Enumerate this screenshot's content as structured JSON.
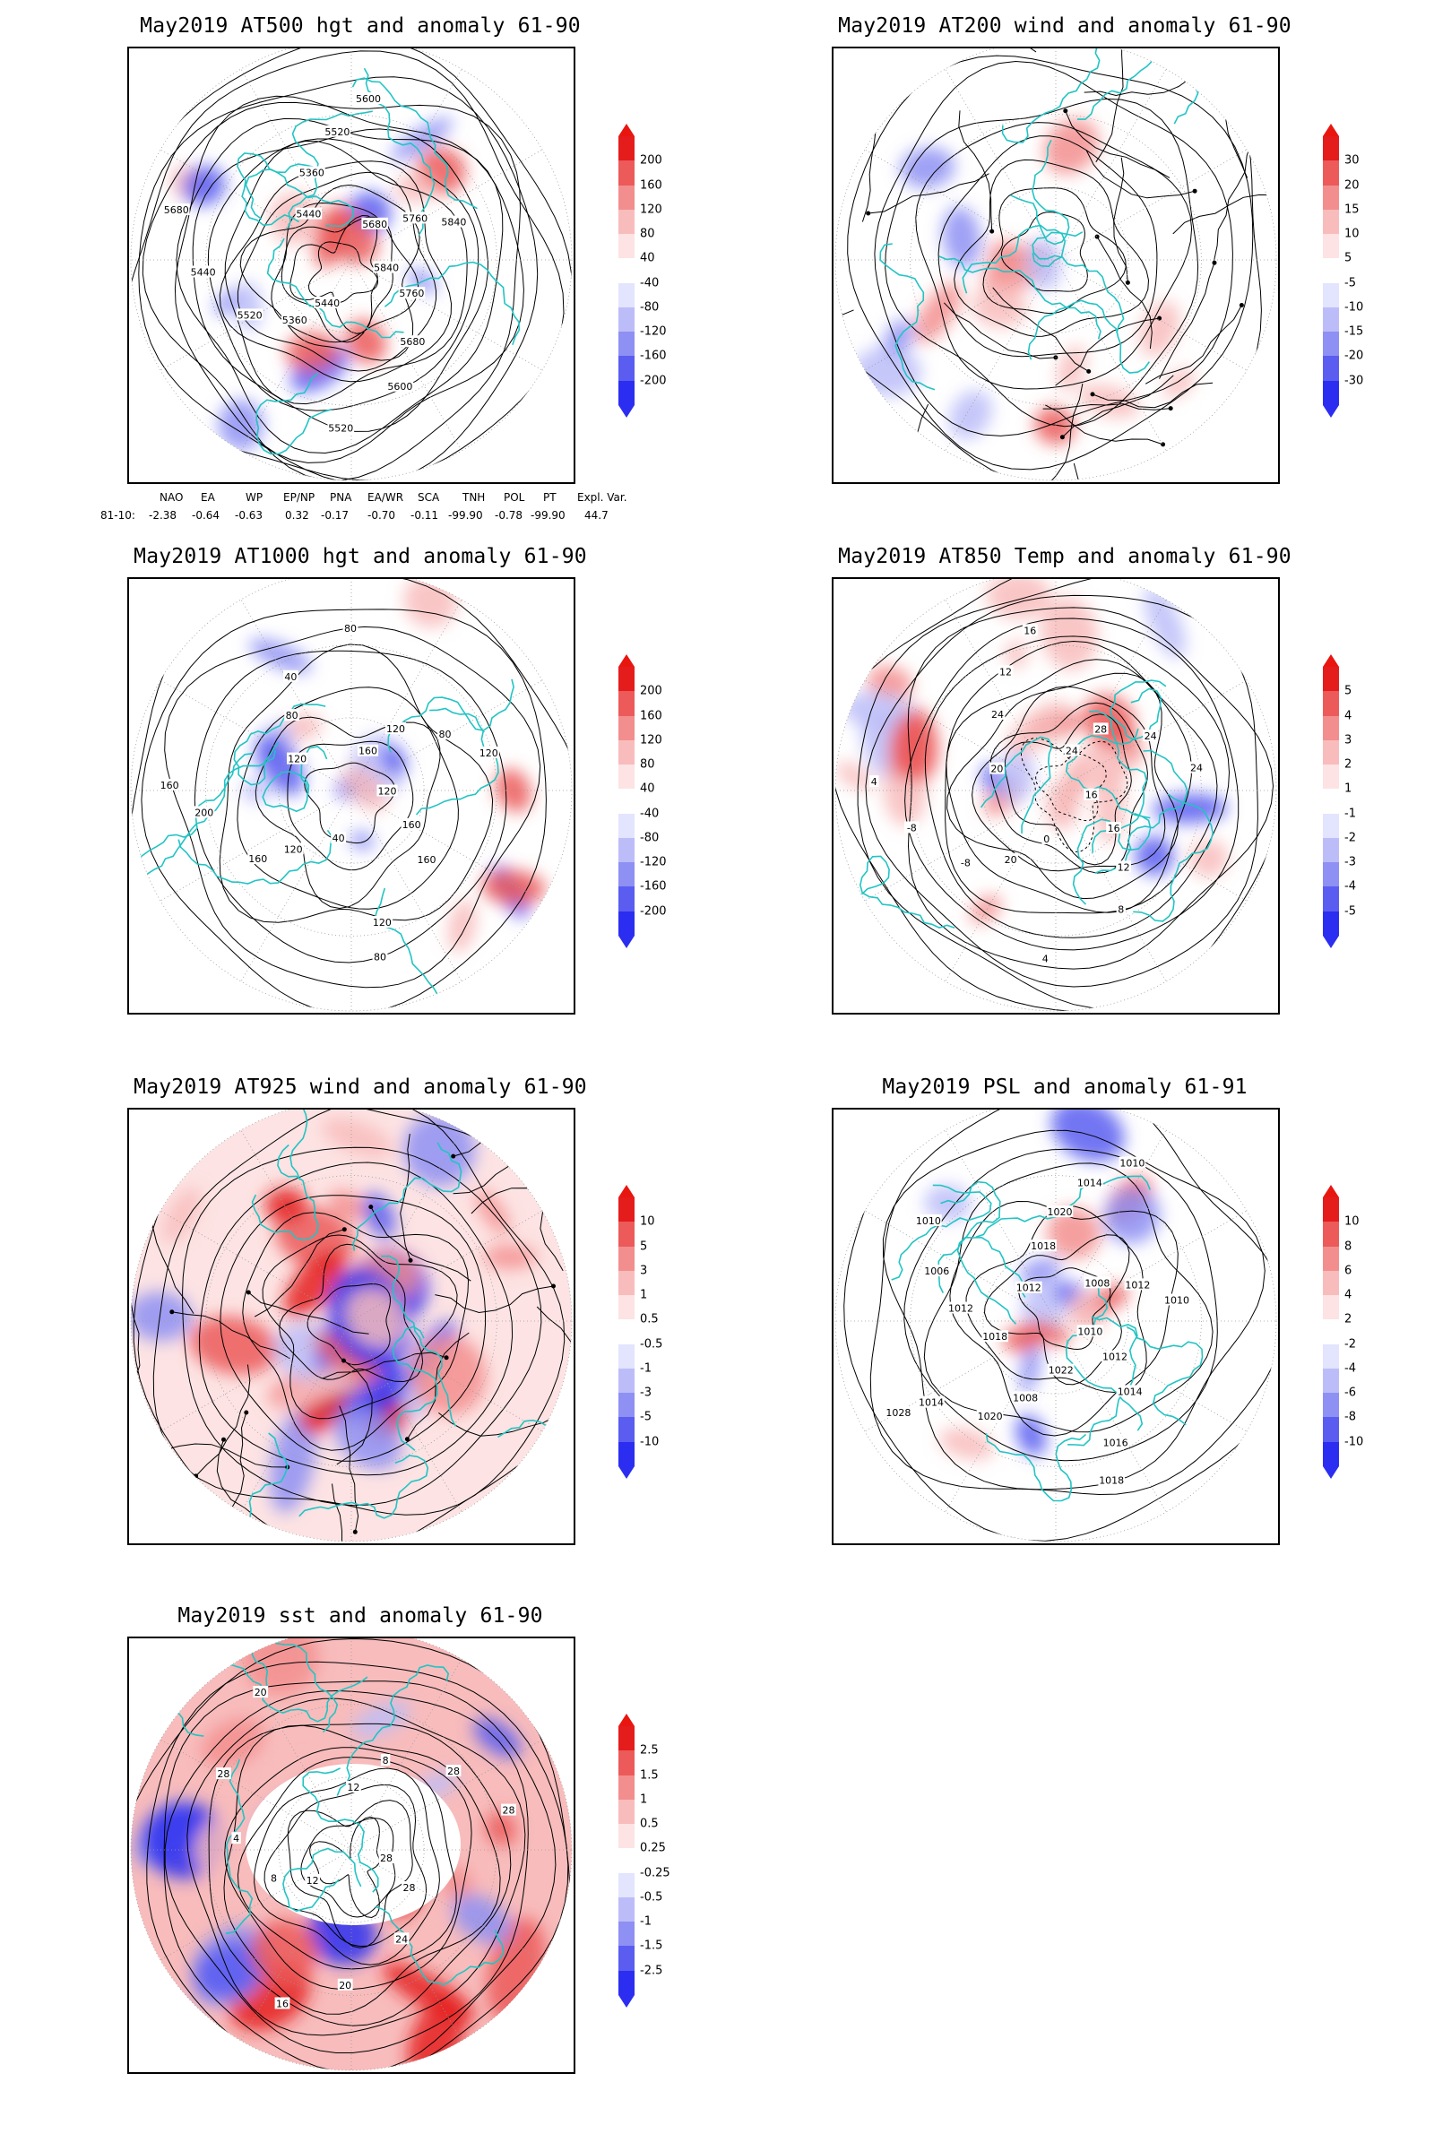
{
  "colors": {
    "coast": "#22c4c4",
    "pos": [
      "#fde3e3",
      "#f8bcbc",
      "#f38e8e",
      "#ec5a5a",
      "#e51c1c"
    ],
    "neg": [
      "#e3e4fd",
      "#bcbdf8",
      "#8e90f3",
      "#5a5df0",
      "#2b2ef0"
    ],
    "contour": "#000000"
  },
  "panels": [
    {
      "title": "May2019 AT500 hgt and anomaly 61-90",
      "colorbar_ticks": [
        "200",
        "160",
        "120",
        "80",
        "40",
        "-40",
        "-80",
        "-120",
        "-160",
        "-200"
      ],
      "contour_labels": [
        "5840",
        "5760",
        "5680",
        "5600",
        "5520",
        "5440",
        "5360",
        "5520",
        "5440",
        "5680",
        "5440",
        "5360",
        "5520",
        "5600",
        "5680",
        "5760",
        "5840"
      ]
    },
    {
      "title": "May2019 AT200 wind and anomaly 61-90",
      "colorbar_ticks": [
        "30",
        "20",
        "15",
        "10",
        "5",
        "-5",
        "-10",
        "-15",
        "-20",
        "-30"
      ],
      "contour_labels": []
    },
    {
      "title": "May2019 AT1000 hgt and anomaly 61-90",
      "colorbar_ticks": [
        "200",
        "160",
        "120",
        "80",
        "40",
        "-40",
        "-80",
        "-120",
        "-160",
        "-200"
      ],
      "contour_labels": [
        "120",
        "160",
        "160",
        "120",
        "80",
        "40",
        "120",
        "160",
        "200",
        "160",
        "120",
        "80",
        "40",
        "80",
        "160",
        "120",
        "80",
        "120"
      ]
    },
    {
      "title": "May2019 AT850 Temp and anomaly 61-90",
      "colorbar_ticks": [
        "5",
        "4",
        "3",
        "2",
        "1",
        "-1",
        "-2",
        "-3",
        "-4",
        "-5"
      ],
      "contour_labels": [
        "16",
        "16",
        "12",
        "8",
        "4",
        "0",
        "20",
        "-8",
        "-8",
        "4",
        "20",
        "24",
        "12",
        "16",
        "24",
        "28",
        "24",
        "24"
      ]
    },
    {
      "title": "May2019 AT925 wind and anomaly 61-90",
      "colorbar_ticks": [
        "10",
        "5",
        "3",
        "1",
        "0.5",
        "-0.5",
        "-1",
        "-3",
        "-5",
        "-10"
      ],
      "contour_labels": []
    },
    {
      "title": "May2019 PSL and anomaly 61-91",
      "colorbar_ticks": [
        "10",
        "8",
        "6",
        "4",
        "2",
        "-2",
        "-4",
        "-6",
        "-8",
        "-10"
      ],
      "contour_labels": [
        "1010",
        "1012",
        "1014",
        "1016",
        "1018",
        "1022",
        "1008",
        "1020",
        "1014",
        "1028",
        "1018",
        "1012",
        "1006",
        "1010",
        "1012",
        "1018",
        "1020",
        "1014",
        "1010",
        "1008",
        "1012",
        "1010"
      ]
    },
    {
      "title": "May2019 sst and anomaly 61-90",
      "colorbar_ticks": [
        "2.5",
        "1.5",
        "1",
        "0.5",
        "0.25",
        "-0.25",
        "-0.5",
        "-1",
        "-1.5",
        "-2.5"
      ],
      "contour_labels": [
        "28",
        "28",
        "24",
        "20",
        "16",
        "12",
        "8",
        "4",
        "28",
        "20",
        "12",
        "8",
        "28",
        "28"
      ]
    }
  ],
  "teleconnections": {
    "headers": [
      "NAO",
      "EA",
      "WP",
      "EP/NP",
      "PNA",
      "EA/WR",
      "SCA",
      "TNH",
      "POL",
      "PT",
      "Expl. Var."
    ],
    "row_label": "81-10:",
    "values": [
      "-2.38",
      "-0.64",
      "-0.63",
      "0.32",
      "-0.17",
      "-0.70",
      "-0.11",
      "-99.90",
      "-0.78",
      "-99.90",
      "44.7"
    ]
  }
}
